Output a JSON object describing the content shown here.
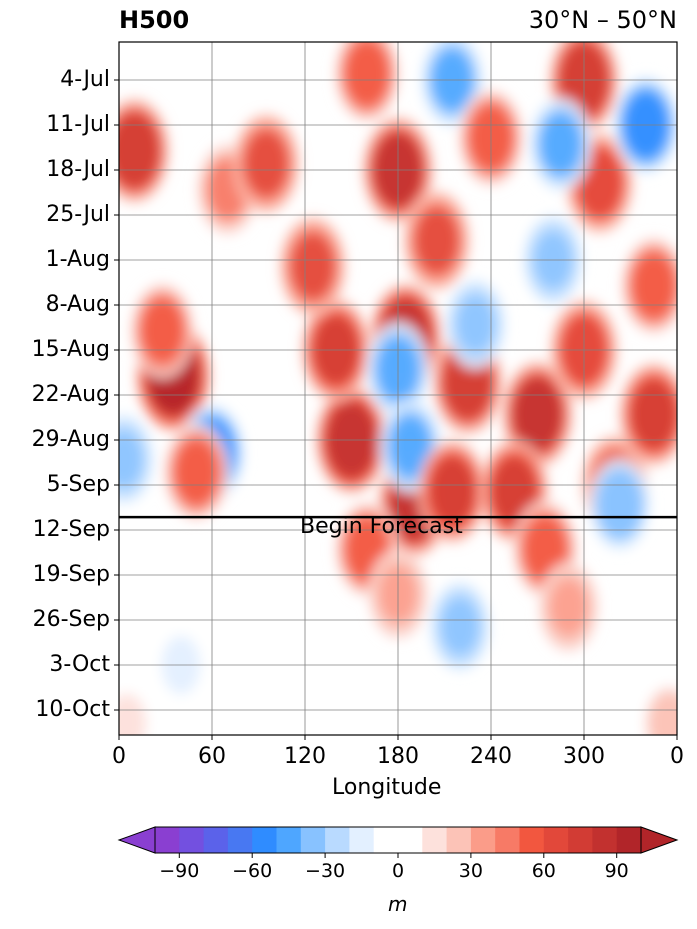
{
  "chart_data": {
    "type": "heatmap",
    "title": "H500",
    "subtitle": "30°N – 50°N",
    "xlabel": "Longitude",
    "x_ticks": [
      "0",
      "60",
      "120",
      "180",
      "240",
      "300",
      "0"
    ],
    "x_range": [
      0,
      360
    ],
    "y_ticks": [
      "4-Jul",
      "11-Jul",
      "18-Jul",
      "25-Jul",
      "1-Aug",
      "8-Aug",
      "15-Aug",
      "22-Aug",
      "29-Aug",
      "5-Sep",
      "12-Sep",
      "19-Sep",
      "26-Sep",
      "3-Oct",
      "10-Oct"
    ],
    "forecast_start": "10-Sep",
    "annotation": "Begin Forecast",
    "grid": true,
    "colorbar": {
      "unit": "m",
      "ticks": [
        "−90",
        "−60",
        "−30",
        "0",
        "30",
        "60",
        "90"
      ],
      "tick_values": [
        -90,
        -60,
        -30,
        0,
        30,
        60,
        90
      ],
      "range": [
        -105,
        105
      ],
      "levels_step": 10,
      "colors": [
        "#8a3fd1",
        "#7350e0",
        "#5b62ea",
        "#4878f2",
        "#2f8cff",
        "#4ea6ff",
        "#88c2ff",
        "#b9daff",
        "#e3f0ff",
        "#ffffff",
        "#ffffff",
        "#fde1dc",
        "#fcc3b7",
        "#fb9c89",
        "#f77a66",
        "#f2573f",
        "#e2483a",
        "#d23c34",
        "#c2312f",
        "#b12529"
      ],
      "extend_low": "#8a3fd1",
      "extend_high": "#b12529"
    },
    "anomaly_features": [
      {
        "lon": 10,
        "date": "15-Jul",
        "value": 75
      },
      {
        "lon": 35,
        "date": "19-Aug",
        "value": 90
      },
      {
        "lon": 60,
        "date": "31-Aug",
        "value": -55
      },
      {
        "lon": 3,
        "date": "1-Sep",
        "value": -35
      },
      {
        "lon": 28,
        "date": "12-Aug",
        "value": 50
      },
      {
        "lon": 70,
        "date": "21-Jul",
        "value": 40
      },
      {
        "lon": 95,
        "date": "17-Jul",
        "value": 60
      },
      {
        "lon": 150,
        "date": "29-Aug",
        "value": 85
      },
      {
        "lon": 140,
        "date": "15-Aug",
        "value": 70
      },
      {
        "lon": 125,
        "date": "2-Aug",
        "value": 60
      },
      {
        "lon": 190,
        "date": "8-Sep",
        "value": 80
      },
      {
        "lon": 180,
        "date": "18-Jul",
        "value": 80
      },
      {
        "lon": 205,
        "date": "29-Jul",
        "value": 60
      },
      {
        "lon": 185,
        "date": "13-Aug",
        "value": 85
      },
      {
        "lon": 180,
        "date": "18-Aug",
        "value": -50
      },
      {
        "lon": 188,
        "date": "30-Aug",
        "value": -45
      },
      {
        "lon": 215,
        "date": "6-Sep",
        "value": 70
      },
      {
        "lon": 225,
        "date": "20-Aug",
        "value": 75
      },
      {
        "lon": 270,
        "date": "25-Aug",
        "value": 80
      },
      {
        "lon": 255,
        "date": "6-Sep",
        "value": 70
      },
      {
        "lon": 300,
        "date": "15-Aug",
        "value": 65
      },
      {
        "lon": 310,
        "date": "20-Jul",
        "value": 65
      },
      {
        "lon": 320,
        "date": "5-Sep",
        "value": 60
      },
      {
        "lon": 345,
        "date": "25-Aug",
        "value": 70
      },
      {
        "lon": 300,
        "date": "4-Jul",
        "value": 75
      },
      {
        "lon": 345,
        "date": "5-Aug",
        "value": 55
      },
      {
        "lon": 285,
        "date": "14-Jul",
        "value": -45
      },
      {
        "lon": 340,
        "date": "11-Jul",
        "value": -55
      },
      {
        "lon": 215,
        "date": "4-Jul",
        "value": -45
      },
      {
        "lon": 240,
        "date": "13-Jul",
        "value": 55
      },
      {
        "lon": 160,
        "date": "3-Jul",
        "value": 55
      },
      {
        "lon": 230,
        "date": "11-Aug",
        "value": -35
      },
      {
        "lon": 323,
        "date": "8-Sep",
        "value": -40
      },
      {
        "lon": 280,
        "date": "1-Aug",
        "value": -35
      },
      {
        "lon": 50,
        "date": "3-Sep",
        "value": 55
      },
      {
        "lon": 160,
        "date": "15-Sep",
        "value": 50
      },
      {
        "lon": 275,
        "date": "15-Sep",
        "value": 55
      },
      {
        "lon": 220,
        "date": "27-Sep",
        "value": -35
      },
      {
        "lon": 180,
        "date": "22-Sep",
        "value": 35
      },
      {
        "lon": 290,
        "date": "24-Sep",
        "value": 35
      },
      {
        "lon": 40,
        "date": "3-Oct",
        "value": -15
      },
      {
        "lon": 355,
        "date": "12-Oct",
        "value": 25
      },
      {
        "lon": 5,
        "date": "12-Oct",
        "value": 15
      }
    ]
  }
}
